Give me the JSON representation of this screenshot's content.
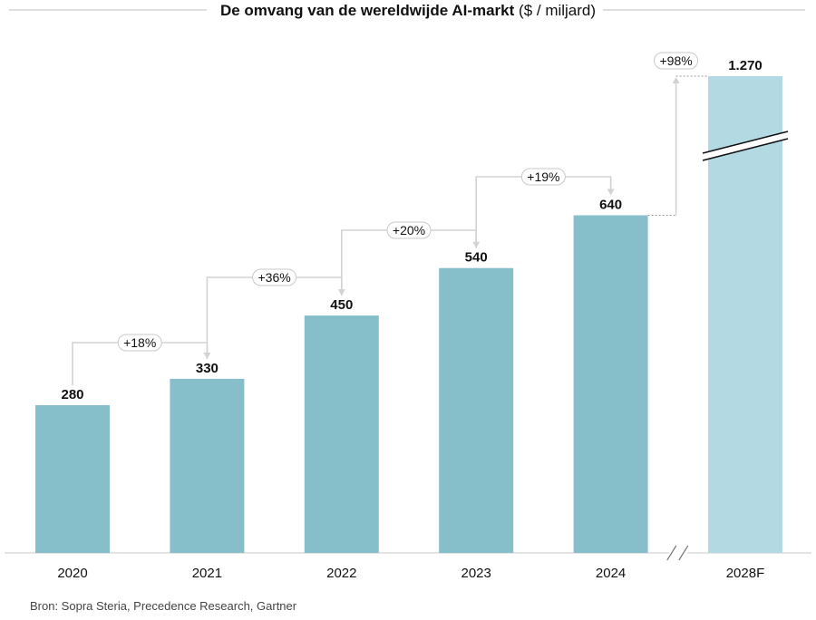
{
  "chart_data": {
    "type": "bar",
    "title_bold": "De omvang van de wereldwijde AI-markt",
    "title_unit": "($ / miljard)",
    "categories": [
      "2020",
      "2021",
      "2022",
      "2023",
      "2024",
      "2028F"
    ],
    "values": [
      280,
      330,
      450,
      540,
      640,
      1270
    ],
    "value_labels": [
      "280",
      "330",
      "450",
      "540",
      "640",
      "1.270"
    ],
    "growth_labels": [
      "+18%",
      "+36%",
      "+20%",
      "+19%",
      "+98%"
    ],
    "forecast_index": 5,
    "axis_break": true,
    "ylim": [
      0,
      680
    ],
    "xlabel": "",
    "ylabel": "",
    "grid": false,
    "colors": {
      "bar": "#86bec9",
      "forecast": "#b3d9e2",
      "connector": "#d3d3d3"
    }
  },
  "source": "Bron: Sopra Steria, Precedence Research, Gartner"
}
